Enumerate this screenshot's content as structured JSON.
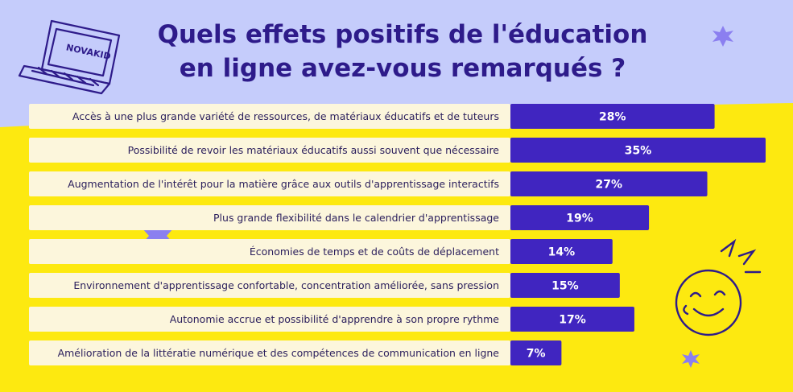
{
  "title_line1": "Quels effets positifs de l'éducation",
  "title_line2": "en ligne avez-vous remarqués ?",
  "logo_text": "NOVAKID",
  "colors": {
    "top_bg": "#c5ccfb",
    "bottom_bg": "#fde910",
    "label_bg": "#fcf6dc",
    "bar": "#4025c0",
    "title": "#2e1b8a",
    "star": "#8b7ff0"
  },
  "chart_data": {
    "type": "bar",
    "orientation": "horizontal",
    "categories": [
      "Accès à une plus grande variété de ressources, de matériaux éducatifs et de tuteurs",
      "Possibilité de revoir les matériaux éducatifs aussi souvent que nécessaire",
      "Augmentation de l'intérêt pour la matière grâce aux outils d'apprentissage interactifs",
      "Plus grande flexibilité dans le calendrier d'apprentissage",
      "Économies de temps et de coûts de déplacement",
      "Environnement d'apprentissage confortable, concentration améliorée, sans pression",
      "Autonomie accrue et possibilité d'apprendre à son propre rythme",
      "Amélioration de la littératie numérique et des compétences de communication en ligne"
    ],
    "values": [
      28,
      35,
      27,
      19,
      14,
      15,
      17,
      7
    ],
    "value_labels": [
      "28%",
      "35%",
      "27%",
      "19%",
      "14%",
      "15%",
      "17%",
      "7%"
    ],
    "unit": "%",
    "xlim": [
      0,
      35
    ],
    "grid": false,
    "legend": "none"
  }
}
